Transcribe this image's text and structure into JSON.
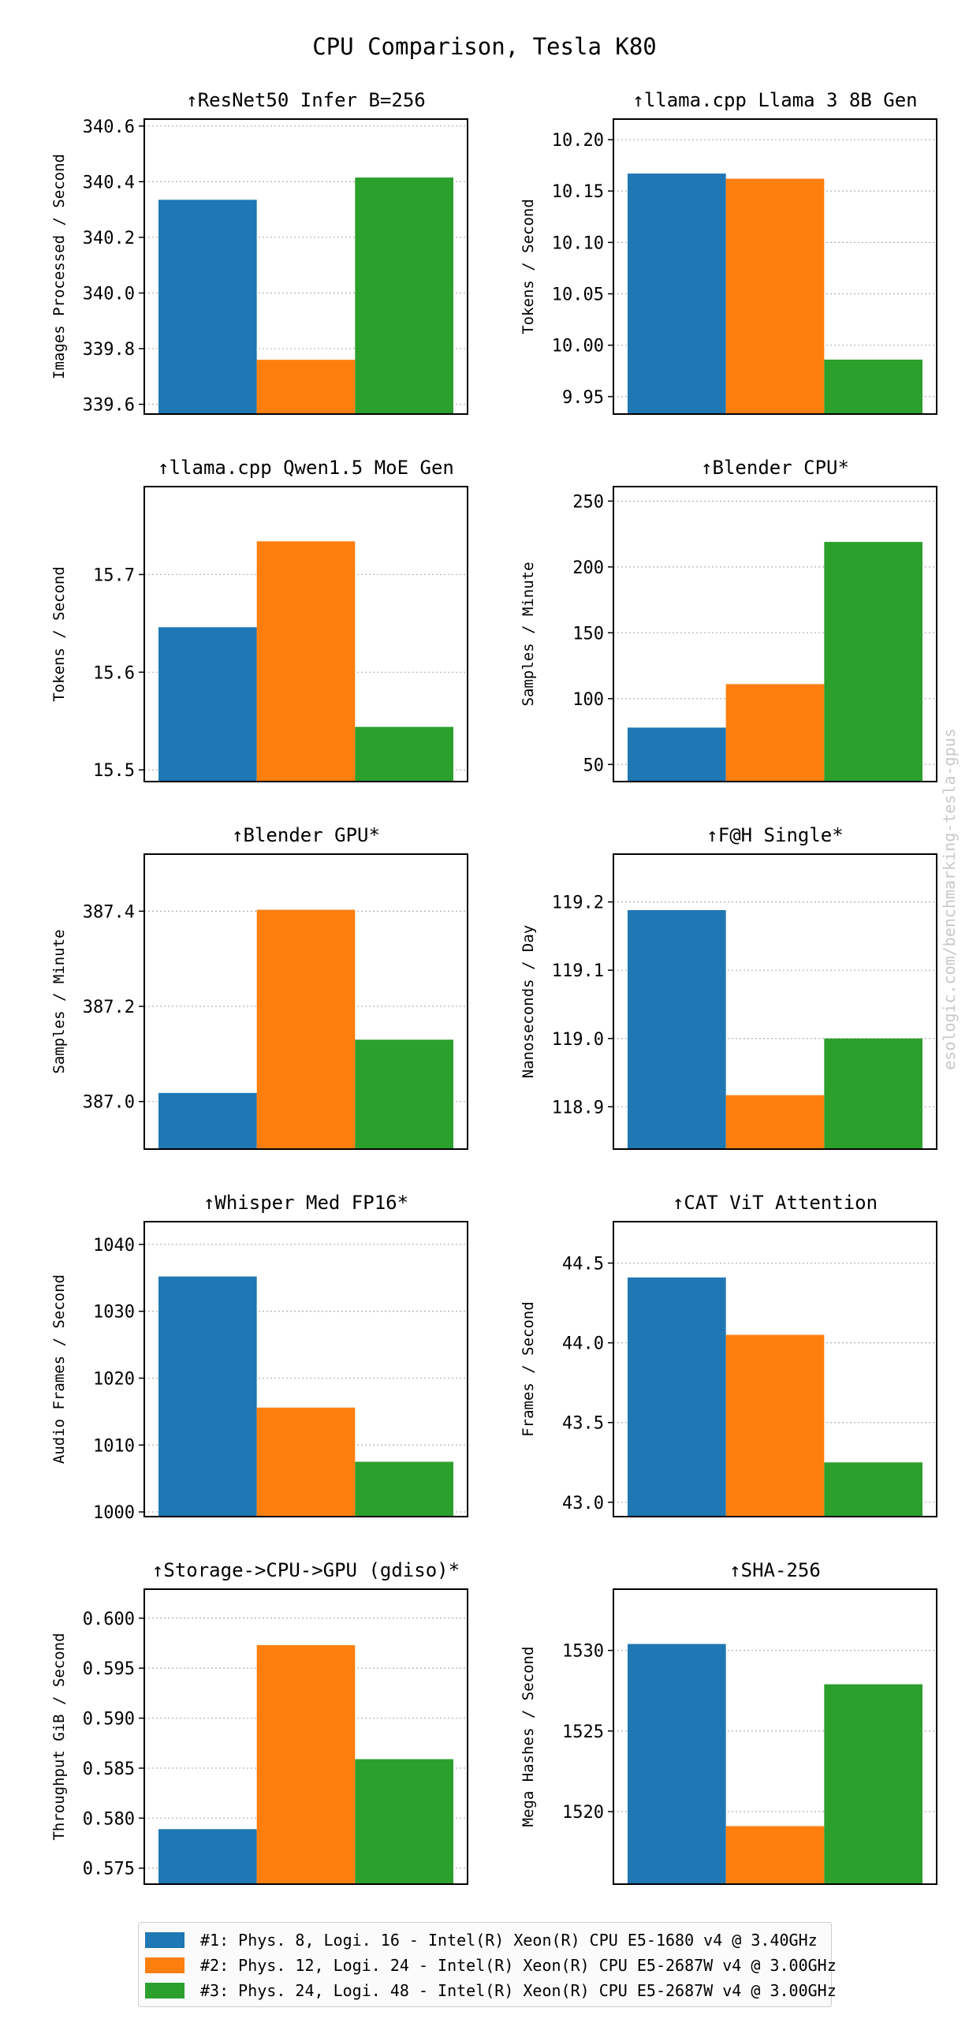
{
  "title": "CPU Comparison, Tesla K80",
  "watermark": "esologic.com/benchmarking-tesla-gpus",
  "colors": [
    "#1f77b4",
    "#ff7f0e",
    "#2ca02c"
  ],
  "legend": [
    "#1: Phys. 8, Logi. 16 - Intel(R) Xeon(R) CPU E5-1680 v4 @ 3.40GHz",
    "#2: Phys. 12, Logi. 24 - Intel(R) Xeon(R) CPU E5-2687W v4 @ 3.00GHz",
    "#3: Phys. 24, Logi. 48 - Intel(R) Xeon(R) CPU E5-2687W v4 @ 3.00GHz"
  ],
  "chart_data": [
    {
      "type": "bar",
      "title": "↑ResNet50 Infer B=256",
      "ylabel": "Images Processed / Second",
      "values": [
        340.335,
        339.76,
        340.415
      ],
      "ylim": [
        339.565,
        340.625
      ],
      "yticks": [
        339.6,
        339.8,
        340.0,
        340.2,
        340.4,
        340.6
      ],
      "ytick_labels": [
        "339.6",
        "339.8",
        "340.0",
        "340.2",
        "340.4",
        "340.6"
      ]
    },
    {
      "type": "bar",
      "title": "↑llama.cpp Llama 3 8B Gen",
      "ylabel": "Tokens / Second",
      "values": [
        10.167,
        10.162,
        9.986
      ],
      "ylim": [
        9.933,
        10.22
      ],
      "yticks": [
        9.95,
        10.0,
        10.05,
        10.1,
        10.15,
        10.2
      ],
      "ytick_labels": [
        "9.95",
        "10.00",
        "10.05",
        "10.10",
        "10.15",
        "10.20"
      ]
    },
    {
      "type": "bar",
      "title": "↑llama.cpp Qwen1.5 MoE Gen",
      "ylabel": "Tokens / Second",
      "values": [
        15.646,
        15.734,
        15.544
      ],
      "ylim": [
        15.488,
        15.79
      ],
      "yticks": [
        15.5,
        15.6,
        15.7
      ],
      "ytick_labels": [
        "15.5",
        "15.6",
        "15.7"
      ]
    },
    {
      "type": "bar",
      "title": "↑Blender CPU*",
      "ylabel": "Samples / Minute",
      "values": [
        78,
        111,
        219
      ],
      "ylim": [
        37,
        261
      ],
      "yticks": [
        50,
        100,
        150,
        200,
        250
      ],
      "ytick_labels": [
        "50",
        "100",
        "150",
        "200",
        "250"
      ]
    },
    {
      "type": "bar",
      "title": "↑Blender GPU*",
      "ylabel": "Samples / Minute",
      "values": [
        387.018,
        387.403,
        387.13
      ],
      "ylim": [
        386.9,
        387.52
      ],
      "yticks": [
        387.0,
        387.2,
        387.4
      ],
      "ytick_labels": [
        "387.0",
        "387.2",
        "387.4"
      ]
    },
    {
      "type": "bar",
      "title": "↑F@H Single*",
      "ylabel": "Nanoseconds / Day",
      "values": [
        119.188,
        118.917,
        119.0
      ],
      "ylim": [
        118.838,
        119.27
      ],
      "yticks": [
        118.9,
        119.0,
        119.1,
        119.2
      ],
      "ytick_labels": [
        "118.9",
        "119.0",
        "119.1",
        "119.2"
      ]
    },
    {
      "type": "bar",
      "title": "↑Whisper Med FP16*",
      "ylabel": "Audio Frames / Second",
      "values": [
        1035.2,
        1015.6,
        1007.5
      ],
      "ylim": [
        999.3,
        1043.4
      ],
      "yticks": [
        1000,
        1010,
        1020,
        1030,
        1040
      ],
      "ytick_labels": [
        "1000",
        "1010",
        "1020",
        "1030",
        "1040"
      ]
    },
    {
      "type": "bar",
      "title": "↑CAT ViT Attention",
      "ylabel": "Frames / Second",
      "values": [
        44.41,
        44.05,
        43.25
      ],
      "ylim": [
        42.91,
        44.76
      ],
      "yticks": [
        43.0,
        43.5,
        44.0,
        44.5
      ],
      "ytick_labels": [
        "43.0",
        "43.5",
        "44.0",
        "44.5"
      ]
    },
    {
      "type": "bar",
      "title": "↑Storage->CPU->GPU (gdiso)*",
      "ylabel": "Throughput GiB / Second",
      "values": [
        0.5789,
        0.5973,
        0.5859
      ],
      "ylim": [
        0.5734,
        0.6029
      ],
      "yticks": [
        0.575,
        0.58,
        0.585,
        0.59,
        0.595,
        0.6
      ],
      "ytick_labels": [
        "0.575",
        "0.580",
        "0.585",
        "0.590",
        "0.595",
        "0.600"
      ]
    },
    {
      "type": "bar",
      "title": "↑SHA-256",
      "ylabel": "Mega Hashes / Second",
      "values": [
        1530.4,
        1519.1,
        1527.9
      ],
      "ylim": [
        1515.5,
        1533.8
      ],
      "yticks": [
        1520,
        1525,
        1530
      ],
      "ytick_labels": [
        "1520",
        "1525",
        "1530"
      ]
    }
  ]
}
